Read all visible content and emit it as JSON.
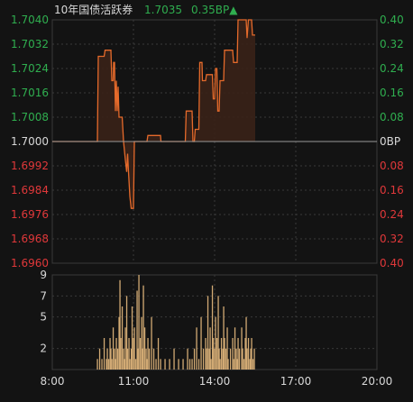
{
  "header": {
    "title": "10年国债活跃券",
    "price": "1.7035",
    "change": "0.35BP▲"
  },
  "colors": {
    "up": "#2fae4f",
    "down": "#e0383a",
    "neutral": "#d8d8d8",
    "line": "#e56a2b",
    "fill": "#3a2218",
    "volume": "#d2aa74",
    "grid": "#3a3a3a",
    "baseline": "#9a9a9a",
    "background": "#131313"
  },
  "chart_data": [
    {
      "type": "line",
      "title": "10年国债活跃券",
      "x_range": [
        "08:00",
        "20:00"
      ],
      "ylim": [
        1.696,
        1.704
      ],
      "baseline": 1.7,
      "left_ticks": [
        "1.7040",
        "1.7032",
        "1.7024",
        "1.7016",
        "1.7008",
        "1.7000",
        "1.6992",
        "1.6984",
        "1.6976",
        "1.6968",
        "1.6960"
      ],
      "right_ticks": [
        "0.40",
        "0.32",
        "0.24",
        "0.16",
        "0.08",
        "0BP",
        "0.08",
        "0.16",
        "0.24",
        "0.32",
        "0.40"
      ],
      "series": [
        {
          "points": [
            [
              "08:00",
              1.7
            ],
            [
              "09:40",
              1.7
            ],
            [
              "09:42",
              1.7028
            ],
            [
              "09:55",
              1.7028
            ],
            [
              "09:57",
              1.703
            ],
            [
              "10:10",
              1.703
            ],
            [
              "10:12",
              1.702
            ],
            [
              "10:15",
              1.702
            ],
            [
              "10:16",
              1.7026
            ],
            [
              "10:18",
              1.7026
            ],
            [
              "10:20",
              1.701
            ],
            [
              "10:22",
              1.702
            ],
            [
              "10:24",
              1.701
            ],
            [
              "10:26",
              1.7018
            ],
            [
              "10:28",
              1.7008
            ],
            [
              "10:35",
              1.7008
            ],
            [
              "10:38",
              1.7
            ],
            [
              "10:42",
              1.6994
            ],
            [
              "10:45",
              1.699
            ],
            [
              "10:47",
              1.6996
            ],
            [
              "10:49",
              1.699
            ],
            [
              "10:52",
              1.6982
            ],
            [
              "10:55",
              1.6978
            ],
            [
              "11:00",
              1.6978
            ],
            [
              "11:02",
              1.7
            ],
            [
              "11:30",
              1.7
            ],
            [
              "11:32",
              1.7002
            ],
            [
              "12:00",
              1.7002
            ],
            [
              "12:01",
              1.7
            ],
            [
              "12:55",
              1.7
            ],
            [
              "12:57",
              1.701
            ],
            [
              "13:10",
              1.701
            ],
            [
              "13:12",
              1.7
            ],
            [
              "13:15",
              1.7
            ],
            [
              "13:17",
              1.7004
            ],
            [
              "13:25",
              1.7004
            ],
            [
              "13:27",
              1.7026
            ],
            [
              "13:32",
              1.7026
            ],
            [
              "13:33",
              1.702
            ],
            [
              "13:40",
              1.702
            ],
            [
              "13:42",
              1.7022
            ],
            [
              "13:55",
              1.7022
            ],
            [
              "13:57",
              1.7014
            ],
            [
              "14:00",
              1.7014
            ],
            [
              "14:02",
              1.7024
            ],
            [
              "14:05",
              1.7024
            ],
            [
              "14:07",
              1.701
            ],
            [
              "14:10",
              1.701
            ],
            [
              "14:12",
              1.702
            ],
            [
              "14:20",
              1.702
            ],
            [
              "14:22",
              1.703
            ],
            [
              "14:40",
              1.703
            ],
            [
              "14:42",
              1.7026
            ],
            [
              "14:50",
              1.7026
            ],
            [
              "14:52",
              1.704
            ],
            [
              "15:10",
              1.704
            ],
            [
              "15:12",
              1.7034
            ],
            [
              "15:15",
              1.704
            ],
            [
              "15:22",
              1.704
            ],
            [
              "15:24",
              1.7035
            ],
            [
              "15:30",
              1.7035
            ]
          ]
        }
      ]
    },
    {
      "type": "bar",
      "title": "",
      "ylim": [
        0,
        9
      ],
      "y_ticks": [
        "9",
        "7",
        "5",
        "2"
      ],
      "x_ticks": [
        "8:00",
        "11:00",
        "14:00",
        "17:00",
        "20:00"
      ],
      "x_range": [
        "08:00",
        "20:00"
      ],
      "series": [
        {
          "points": [
            [
              "09:40",
              1
            ],
            [
              "09:45",
              2
            ],
            [
              "09:50",
              1
            ],
            [
              "09:55",
              3
            ],
            [
              "10:00",
              1
            ],
            [
              "10:02",
              2
            ],
            [
              "10:05",
              1
            ],
            [
              "10:08",
              3
            ],
            [
              "10:10",
              2
            ],
            [
              "10:12",
              1
            ],
            [
              "10:15",
              4
            ],
            [
              "10:18",
              2
            ],
            [
              "10:20",
              1
            ],
            [
              "10:22",
              3
            ],
            [
              "10:25",
              2
            ],
            [
              "10:28",
              5
            ],
            [
              "10:30",
              8.5
            ],
            [
              "10:32",
              3
            ],
            [
              "10:35",
              6
            ],
            [
              "10:38",
              2
            ],
            [
              "10:40",
              1
            ],
            [
              "10:42",
              4
            ],
            [
              "10:45",
              7
            ],
            [
              "10:47",
              2
            ],
            [
              "10:50",
              3
            ],
            [
              "10:52",
              1
            ],
            [
              "10:55",
              2
            ],
            [
              "10:57",
              6
            ],
            [
              "11:00",
              3
            ],
            [
              "11:02",
              4
            ],
            [
              "11:05",
              1
            ],
            [
              "11:08",
              7.5
            ],
            [
              "11:10",
              2
            ],
            [
              "11:12",
              9
            ],
            [
              "11:15",
              3
            ],
            [
              "11:18",
              5
            ],
            [
              "11:20",
              2
            ],
            [
              "11:22",
              8
            ],
            [
              "11:25",
              4
            ],
            [
              "11:28",
              2
            ],
            [
              "11:30",
              1
            ],
            [
              "11:32",
              3
            ],
            [
              "11:35",
              2
            ],
            [
              "11:40",
              5
            ],
            [
              "11:45",
              2
            ],
            [
              "11:50",
              1
            ],
            [
              "11:55",
              3
            ],
            [
              "12:00",
              1
            ],
            [
              "12:10",
              1
            ],
            [
              "12:20",
              1
            ],
            [
              "12:30",
              2
            ],
            [
              "12:40",
              1
            ],
            [
              "12:50",
              1
            ],
            [
              "13:00",
              2
            ],
            [
              "13:05",
              1
            ],
            [
              "13:10",
              1
            ],
            [
              "13:15",
              2
            ],
            [
              "13:20",
              4
            ],
            [
              "13:25",
              1
            ],
            [
              "13:30",
              5
            ],
            [
              "13:35",
              2
            ],
            [
              "13:40",
              3
            ],
            [
              "13:42",
              2
            ],
            [
              "13:45",
              7
            ],
            [
              "13:48",
              2
            ],
            [
              "13:50",
              4
            ],
            [
              "13:52",
              1
            ],
            [
              "13:55",
              8
            ],
            [
              "13:57",
              3
            ],
            [
              "14:00",
              2
            ],
            [
              "14:02",
              5
            ],
            [
              "14:05",
              3
            ],
            [
              "14:08",
              7
            ],
            [
              "14:10",
              2
            ],
            [
              "14:12",
              1
            ],
            [
              "14:15",
              3
            ],
            [
              "14:18",
              2
            ],
            [
              "14:20",
              6
            ],
            [
              "14:22",
              3
            ],
            [
              "14:25",
              2
            ],
            [
              "14:28",
              4
            ],
            [
              "14:30",
              1
            ],
            [
              "14:35",
              2
            ],
            [
              "14:40",
              3
            ],
            [
              "14:42",
              1
            ],
            [
              "14:45",
              4
            ],
            [
              "14:48",
              2
            ],
            [
              "14:50",
              1
            ],
            [
              "14:52",
              3
            ],
            [
              "14:55",
              2
            ],
            [
              "15:00",
              4
            ],
            [
              "15:02",
              2
            ],
            [
              "15:05",
              1
            ],
            [
              "15:08",
              3
            ],
            [
              "15:10",
              5
            ],
            [
              "15:12",
              2
            ],
            [
              "15:15",
              3
            ],
            [
              "15:18",
              1
            ],
            [
              "15:20",
              2
            ],
            [
              "15:22",
              3
            ],
            [
              "15:25",
              1
            ],
            [
              "15:28",
              2
            ]
          ]
        }
      ]
    }
  ]
}
